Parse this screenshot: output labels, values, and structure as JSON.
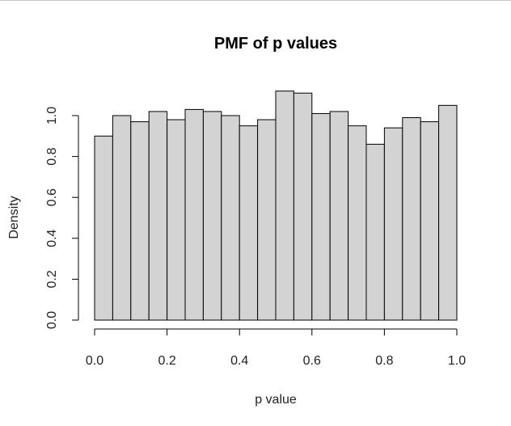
{
  "chart_data": {
    "type": "bar",
    "title": "PMF of p values",
    "xlabel": "p value",
    "ylabel": "Density",
    "xlim": [
      0,
      1
    ],
    "ylim": [
      0,
      1.1
    ],
    "grid": false,
    "x_ticks": [
      "0.0",
      "0.2",
      "0.4",
      "0.6",
      "0.8",
      "1.0"
    ],
    "y_ticks": [
      "0.0",
      "0.2",
      "0.4",
      "0.6",
      "0.8",
      "1.0"
    ],
    "bin_edges": [
      0,
      0.05,
      0.1,
      0.15,
      0.2,
      0.25,
      0.3,
      0.35,
      0.4,
      0.45,
      0.5,
      0.55,
      0.6,
      0.65,
      0.7,
      0.75,
      0.8,
      0.85,
      0.9,
      0.95,
      1.0
    ],
    "values": [
      0.9,
      1.0,
      0.97,
      1.02,
      0.98,
      1.03,
      1.02,
      1.0,
      0.95,
      0.98,
      1.12,
      1.11,
      1.01,
      1.02,
      0.95,
      0.86,
      0.94,
      0.99,
      0.97,
      1.05
    ],
    "bar_fill": "#d3d3d3",
    "bar_stroke": "#000000"
  }
}
